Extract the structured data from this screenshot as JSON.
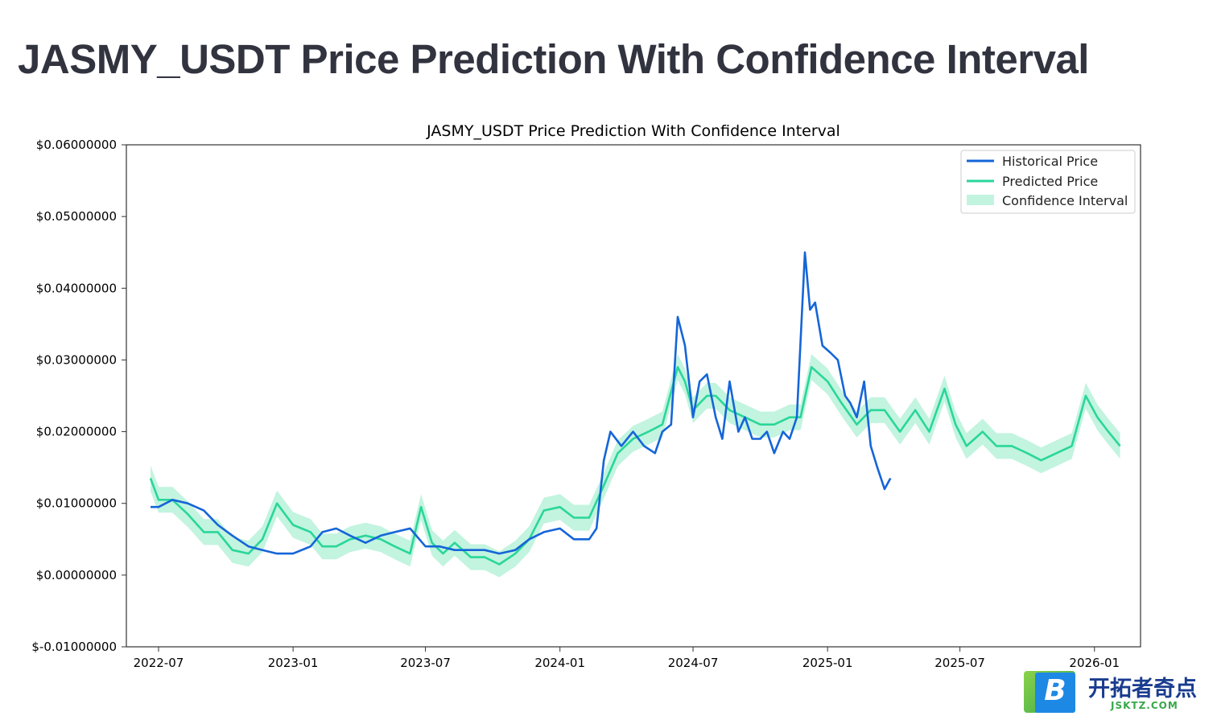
{
  "page": {
    "title": "JASMY_USDT Price Prediction With Confidence Interval"
  },
  "watermark": {
    "badge_letter": "B",
    "brand": "开拓者奇点",
    "domain": "JSKTZ.COM"
  },
  "colors": {
    "historical": "#1565d8",
    "predicted": "#2ad69a",
    "confidence": "#a8f0d2",
    "title_text": "#31333f"
  },
  "chart_data": {
    "type": "line",
    "title": "JASMY_USDT Price Prediction With Confidence Interval",
    "xlabel": "",
    "ylabel": "",
    "x_range": [
      "2022-05-18",
      "2026-03-05"
    ],
    "ylim": [
      -0.01,
      0.06
    ],
    "y_ticks": [
      -0.01,
      0.0,
      0.01,
      0.02,
      0.03,
      0.04,
      0.05,
      0.06
    ],
    "y_tick_labels": [
      "$-0.01000000",
      "$0.00000000",
      "$0.01000000",
      "$0.02000000",
      "$0.03000000",
      "$0.04000000",
      "$0.05000000",
      "$0.06000000"
    ],
    "x_ticks": [
      "2022-07-01",
      "2023-01-01",
      "2023-07-01",
      "2024-01-01",
      "2024-07-01",
      "2025-01-01",
      "2025-07-01",
      "2026-01-01"
    ],
    "x_tick_labels": [
      "2022-07",
      "2023-01",
      "2023-07",
      "2024-01",
      "2024-07",
      "2025-01",
      "2025-07",
      "2026-01"
    ],
    "grid": false,
    "legend_position": "top-right",
    "legend": [
      "Historical Price",
      "Predicted Price",
      "Confidence Interval"
    ],
    "series": [
      {
        "name": "Historical Price",
        "x": [
          "2022-06-20",
          "2022-07-01",
          "2022-07-20",
          "2022-08-10",
          "2022-09-01",
          "2022-09-20",
          "2022-10-10",
          "2022-11-01",
          "2022-11-20",
          "2022-12-10",
          "2023-01-01",
          "2023-01-25",
          "2023-02-10",
          "2023-03-01",
          "2023-03-20",
          "2023-04-10",
          "2023-05-01",
          "2023-05-20",
          "2023-06-10",
          "2023-07-01",
          "2023-07-20",
          "2023-08-10",
          "2023-09-01",
          "2023-09-20",
          "2023-10-10",
          "2023-11-01",
          "2023-11-20",
          "2023-12-10",
          "2024-01-01",
          "2024-01-20",
          "2024-02-10",
          "2024-02-20",
          "2024-03-01",
          "2024-03-10",
          "2024-03-25",
          "2024-04-10",
          "2024-04-25",
          "2024-05-10",
          "2024-05-20",
          "2024-06-01",
          "2024-06-10",
          "2024-06-20",
          "2024-07-01",
          "2024-07-10",
          "2024-07-20",
          "2024-08-01",
          "2024-08-10",
          "2024-08-20",
          "2024-09-01",
          "2024-09-10",
          "2024-09-20",
          "2024-10-01",
          "2024-10-10",
          "2024-10-20",
          "2024-11-01",
          "2024-11-10",
          "2024-11-20",
          "2024-12-01",
          "2024-12-08",
          "2024-12-15",
          "2024-12-25",
          "2025-01-05",
          "2025-01-15",
          "2025-01-25",
          "2025-02-01",
          "2025-02-10",
          "2025-02-20",
          "2025-03-01",
          "2025-03-10",
          "2025-03-20",
          "2025-03-28"
        ],
        "values": [
          0.0095,
          0.0095,
          0.0105,
          0.01,
          0.009,
          0.007,
          0.0055,
          0.004,
          0.0035,
          0.003,
          0.003,
          0.004,
          0.006,
          0.0065,
          0.0055,
          0.0045,
          0.0055,
          0.006,
          0.0065,
          0.004,
          0.004,
          0.0035,
          0.0035,
          0.0035,
          0.003,
          0.0035,
          0.005,
          0.006,
          0.0065,
          0.005,
          0.005,
          0.0065,
          0.016,
          0.02,
          0.018,
          0.02,
          0.018,
          0.017,
          0.02,
          0.021,
          0.036,
          0.032,
          0.022,
          0.027,
          0.028,
          0.022,
          0.019,
          0.027,
          0.02,
          0.022,
          0.019,
          0.019,
          0.02,
          0.017,
          0.02,
          0.019,
          0.022,
          0.045,
          0.037,
          0.038,
          0.032,
          0.031,
          0.03,
          0.025,
          0.024,
          0.022,
          0.027,
          0.018,
          0.015,
          0.012,
          0.0135
        ]
      },
      {
        "name": "Predicted Price",
        "x": [
          "2022-06-20",
          "2022-07-01",
          "2022-07-20",
          "2022-08-10",
          "2022-09-01",
          "2022-09-20",
          "2022-10-10",
          "2022-11-01",
          "2022-11-20",
          "2022-12-10",
          "2023-01-01",
          "2023-01-25",
          "2023-02-10",
          "2023-03-01",
          "2023-03-20",
          "2023-04-10",
          "2023-05-01",
          "2023-05-20",
          "2023-06-10",
          "2023-06-25",
          "2023-07-10",
          "2023-07-25",
          "2023-08-10",
          "2023-09-01",
          "2023-09-20",
          "2023-10-10",
          "2023-11-01",
          "2023-11-20",
          "2023-12-10",
          "2024-01-01",
          "2024-01-20",
          "2024-02-10",
          "2024-03-01",
          "2024-03-20",
          "2024-04-10",
          "2024-05-01",
          "2024-05-20",
          "2024-06-10",
          "2024-06-20",
          "2024-07-01",
          "2024-07-20",
          "2024-08-01",
          "2024-08-20",
          "2024-09-10",
          "2024-10-01",
          "2024-10-20",
          "2024-11-10",
          "2024-11-25",
          "2024-12-10",
          "2025-01-01",
          "2025-01-20",
          "2025-02-10",
          "2025-03-01",
          "2025-03-20",
          "2025-04-10",
          "2025-05-01",
          "2025-05-20",
          "2025-06-10",
          "2025-06-25",
          "2025-07-10",
          "2025-08-01",
          "2025-08-20",
          "2025-09-10",
          "2025-10-01",
          "2025-10-20",
          "2025-11-10",
          "2025-12-01",
          "2025-12-20",
          "2026-01-05",
          "2026-01-20",
          "2026-02-05"
        ],
        "values": [
          0.0135,
          0.0105,
          0.0105,
          0.0085,
          0.006,
          0.006,
          0.0035,
          0.003,
          0.005,
          0.01,
          0.007,
          0.006,
          0.004,
          0.004,
          0.005,
          0.0055,
          0.005,
          0.004,
          0.003,
          0.0095,
          0.0045,
          0.003,
          0.0045,
          0.0025,
          0.0025,
          0.0015,
          0.003,
          0.005,
          0.009,
          0.0095,
          0.008,
          0.008,
          0.0125,
          0.017,
          0.019,
          0.02,
          0.021,
          0.029,
          0.027,
          0.023,
          0.025,
          0.025,
          0.023,
          0.022,
          0.021,
          0.021,
          0.022,
          0.022,
          0.029,
          0.027,
          0.024,
          0.021,
          0.023,
          0.023,
          0.02,
          0.023,
          0.02,
          0.026,
          0.021,
          0.018,
          0.02,
          0.018,
          0.018,
          0.017,
          0.016,
          0.017,
          0.018,
          0.025,
          0.022,
          0.02,
          0.018
        ]
      }
    ],
    "confidence_interval": {
      "name": "Confidence Interval",
      "half_width": 0.0018
    }
  }
}
